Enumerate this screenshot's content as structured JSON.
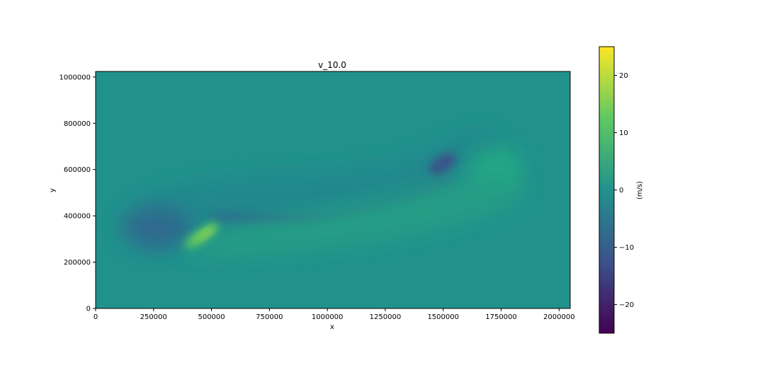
{
  "chart_data": {
    "type": "heatmap",
    "title": "v_10.0",
    "xlabel": "x",
    "ylabel": "y",
    "xlim": [
      0,
      2048000
    ],
    "ylim": [
      0,
      1024000
    ],
    "x_ticks": [
      0,
      250000,
      500000,
      750000,
      1000000,
      1250000,
      1500000,
      1750000,
      2000000
    ],
    "y_ticks": [
      0,
      200000,
      400000,
      600000,
      800000,
      1000000
    ],
    "colorbar": {
      "label": "(m/s)",
      "range": [
        -25,
        25
      ],
      "ticks": [
        -20,
        -10,
        0,
        10,
        20
      ],
      "colormap": "viridis",
      "colors": [
        "#440154",
        "#3b528b",
        "#21918c",
        "#5ec962",
        "#fde725"
      ]
    },
    "background_value": 0,
    "features": [
      {
        "kind": "low",
        "x": 260000,
        "y": 310000,
        "value": -6
      },
      {
        "kind": "low",
        "x": 1530000,
        "y": 620000,
        "value": -10
      },
      {
        "kind": "low",
        "x": 900000,
        "y": 470000,
        "value": -5
      },
      {
        "kind": "high",
        "x": 460000,
        "y": 315000,
        "value": 14
      },
      {
        "kind": "high",
        "x": 1700000,
        "y": 620000,
        "value": 7
      },
      {
        "kind": "high",
        "x": 1150000,
        "y": 420000,
        "value": 4
      }
    ]
  }
}
